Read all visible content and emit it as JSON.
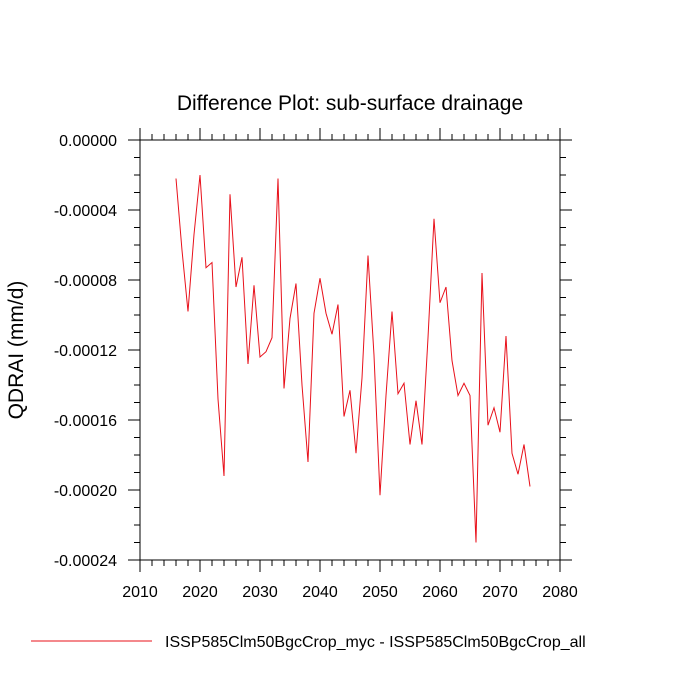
{
  "chart_data": {
    "type": "line",
    "title": "Difference Plot: sub-surface drainage",
    "xlabel": "",
    "ylabel": "QDRAI  (mm/d)",
    "xlim": [
      2010,
      2080
    ],
    "ylim": [
      -0.00024,
      0.0
    ],
    "x_ticks": [
      2010,
      2020,
      2030,
      2040,
      2050,
      2060,
      2070,
      2080
    ],
    "x_tick_labels": [
      "2010",
      "2020",
      "2030",
      "2040",
      "2050",
      "2060",
      "2070",
      "2080"
    ],
    "y_ticks": [
      -0.00024,
      -0.0002,
      -0.00016,
      -0.00012,
      -8e-05,
      -4e-05,
      0.0
    ],
    "y_tick_labels": [
      "-0.00024",
      "-0.00020",
      "-0.00016",
      "-0.00012",
      "-0.00008",
      "-0.00004",
      "0.00000"
    ],
    "grid": false,
    "legend_position": "bottom",
    "series": [
      {
        "name": "ISSP585Clm50BgcCrop_myc - ISSP585Clm50BgcCrop_all",
        "color": "#e8101a",
        "x": [
          2016,
          2017,
          2018,
          2019,
          2020,
          2021,
          2022,
          2023,
          2024,
          2025,
          2026,
          2027,
          2028,
          2029,
          2030,
          2031,
          2032,
          2033,
          2034,
          2035,
          2036,
          2037,
          2038,
          2039,
          2040,
          2041,
          2042,
          2043,
          2044,
          2045,
          2046,
          2047,
          2048,
          2049,
          2050,
          2051,
          2052,
          2053,
          2054,
          2055,
          2056,
          2057,
          2058,
          2059,
          2060,
          2061,
          2062,
          2063,
          2064,
          2065,
          2066,
          2067,
          2068,
          2069,
          2070,
          2071,
          2072,
          2073,
          2074,
          2075
        ],
        "values": [
          -2.2e-05,
          -6.3e-05,
          -9.8e-05,
          -5.4e-05,
          -2e-05,
          -7.3e-05,
          -7e-05,
          -0.000148,
          -0.000192,
          -3.1e-05,
          -8.4e-05,
          -6.7e-05,
          -0.000128,
          -8.3e-05,
          -0.000124,
          -0.000121,
          -0.000113,
          -2.2e-05,
          -0.000142,
          -0.000102,
          -8.2e-05,
          -0.00014,
          -0.000184,
          -9.9e-05,
          -7.9e-05,
          -9.9e-05,
          -0.000111,
          -9.4e-05,
          -0.000158,
          -0.000143,
          -0.000179,
          -0.000136,
          -6.6e-05,
          -0.000123,
          -0.000203,
          -0.000146,
          -9.8e-05,
          -0.000145,
          -0.000139,
          -0.000174,
          -0.000149,
          -0.000174,
          -0.000113,
          -4.5e-05,
          -9.3e-05,
          -8.4e-05,
          -0.000126,
          -0.000146,
          -0.000139,
          -0.000146,
          -0.00023,
          -7.6e-05,
          -0.000163,
          -0.000153,
          -0.000167,
          -0.000112,
          -0.000179,
          -0.000191,
          -0.000174,
          -0.000198
        ]
      }
    ]
  }
}
